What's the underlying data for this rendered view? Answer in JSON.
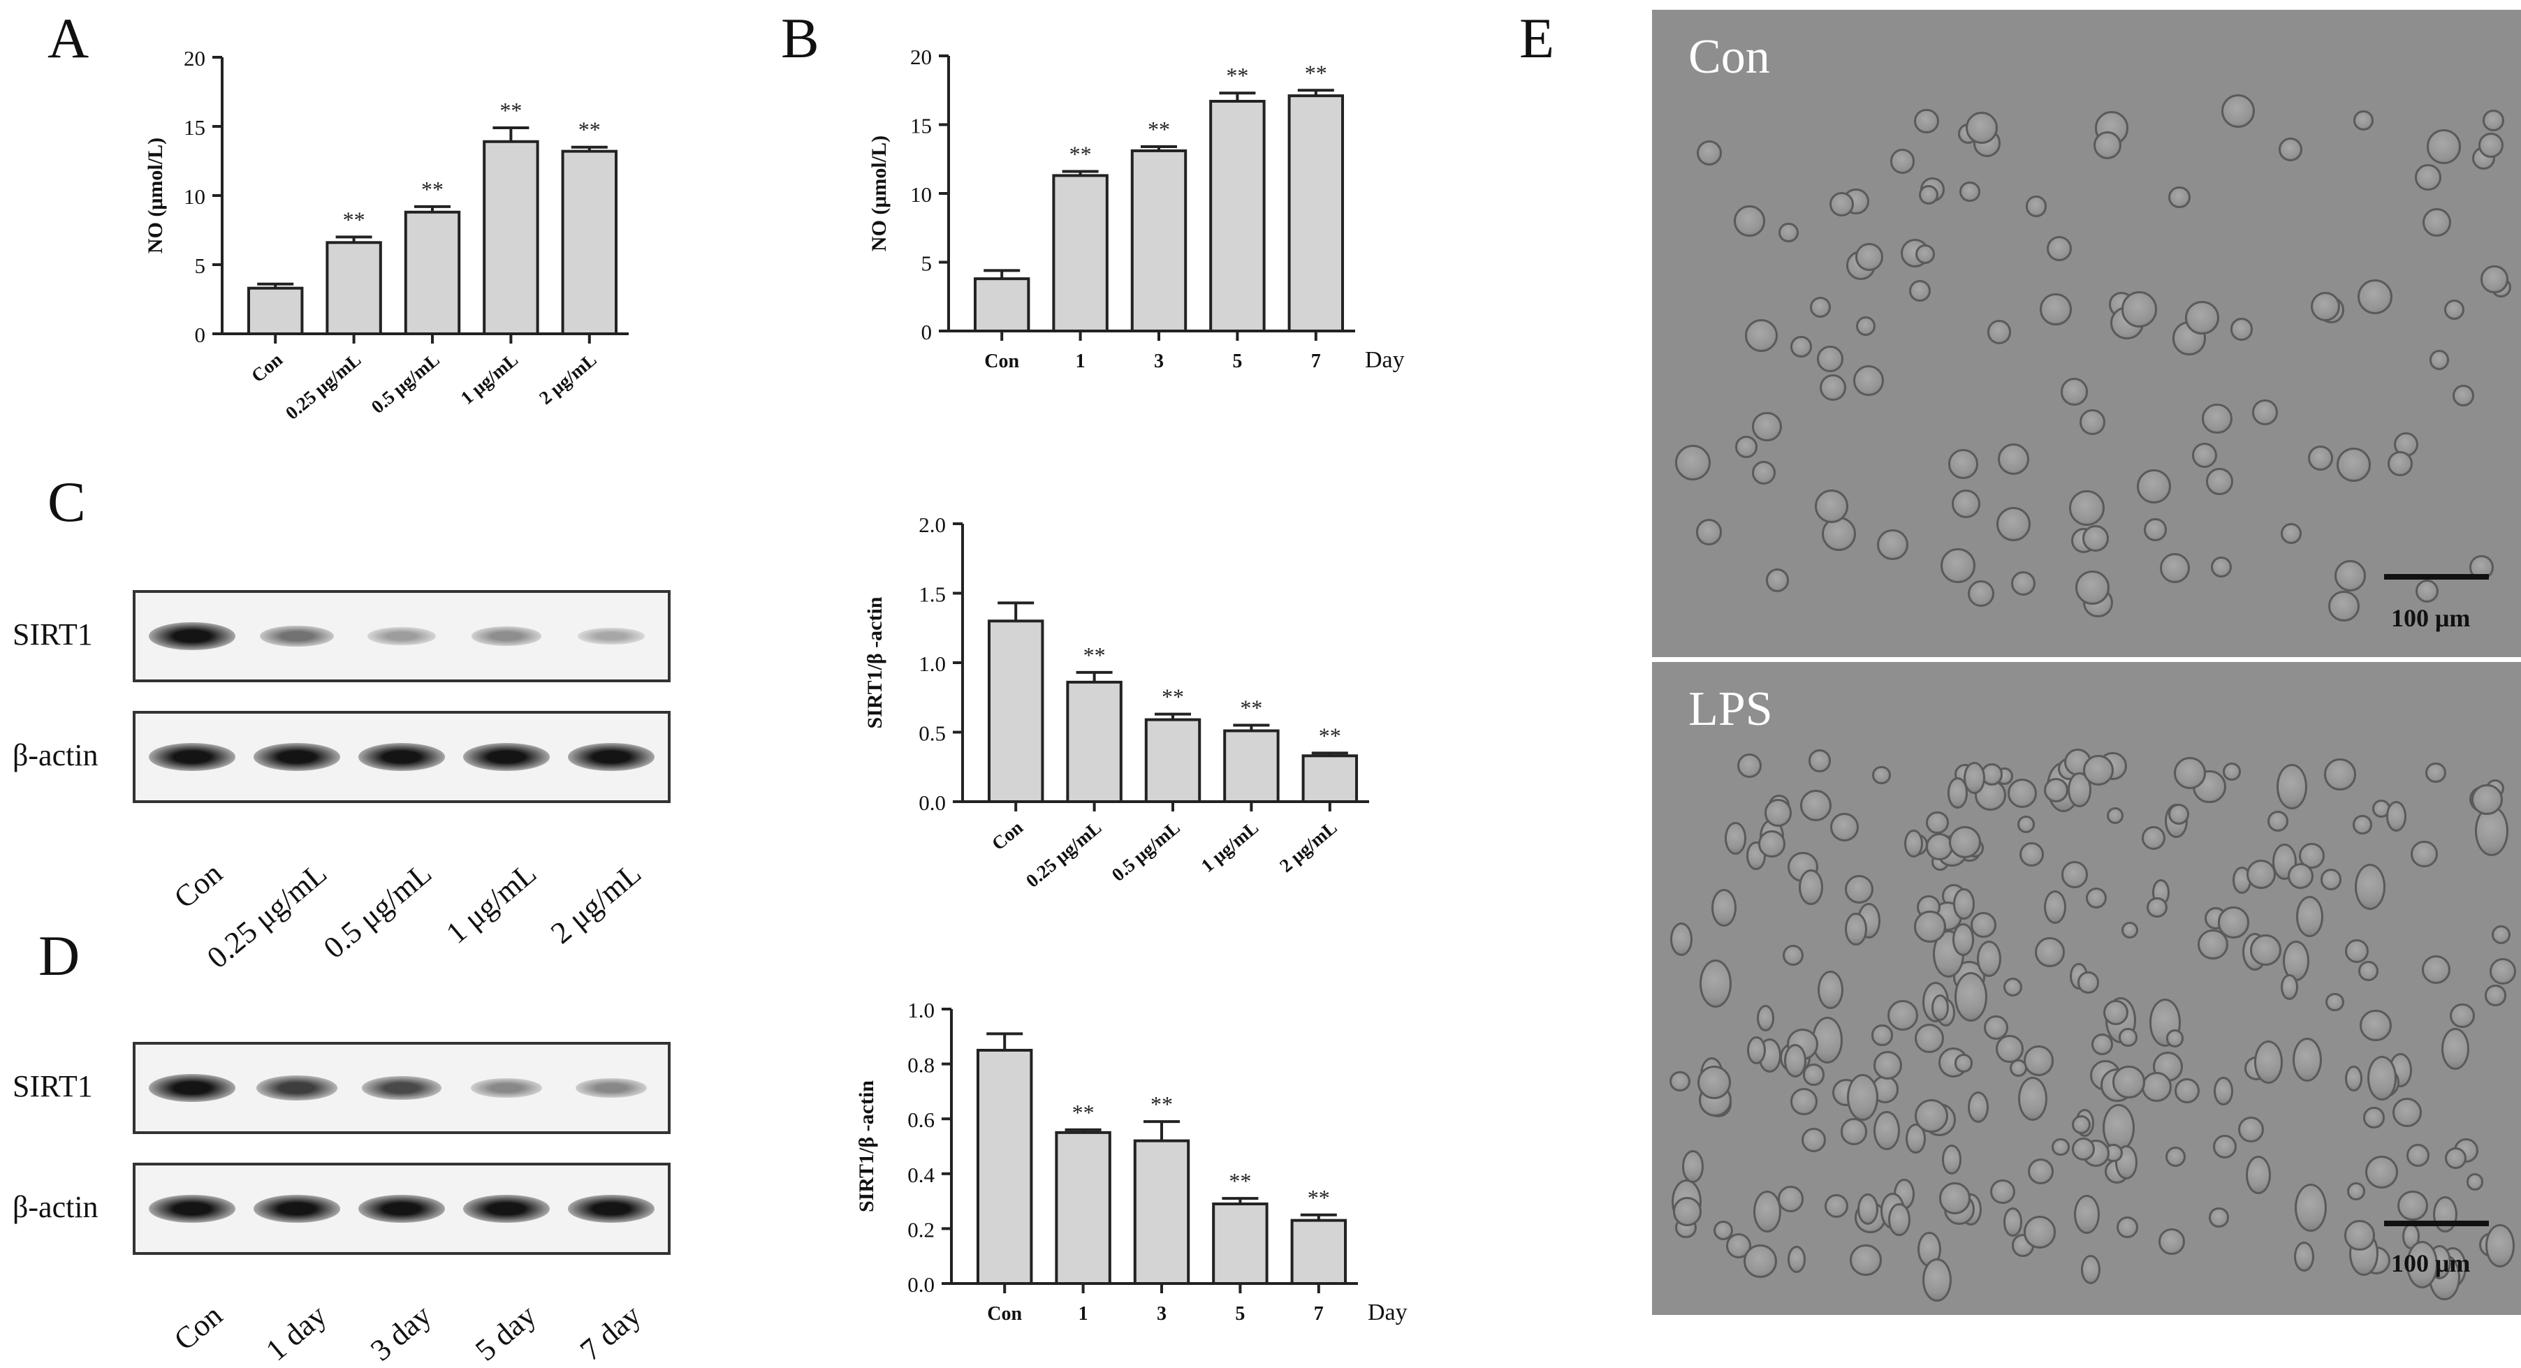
{
  "panel_letters": [
    "A",
    "B",
    "C",
    "D",
    "E"
  ],
  "chart_data": [
    {
      "id": "A",
      "type": "bar",
      "ylabel": "NO (μmol/L)",
      "categories": [
        "Con",
        "0.25 μg/mL",
        "0.5 μg/mL",
        "1 μg/mL",
        "2 μg/mL"
      ],
      "values": [
        3.3,
        6.6,
        8.8,
        13.9,
        13.2
      ],
      "errors": [
        0.3,
        0.4,
        0.4,
        1.0,
        0.3
      ],
      "significance": [
        "",
        "**",
        "**",
        "**",
        "**"
      ],
      "ylim": [
        0,
        20
      ],
      "yticks": [
        "0",
        "5",
        "10",
        "15",
        "20"
      ],
      "x_unit_label": ""
    },
    {
      "id": "B",
      "type": "bar",
      "ylabel": "NO (μmol/L)",
      "categories": [
        "Con",
        "1",
        "3",
        "5",
        "7"
      ],
      "values": [
        3.8,
        11.3,
        13.1,
        16.7,
        17.1
      ],
      "errors": [
        0.6,
        0.3,
        0.3,
        0.6,
        0.4
      ],
      "significance": [
        "",
        "**",
        "**",
        "**",
        "**"
      ],
      "ylim": [
        0,
        20
      ],
      "yticks": [
        "0",
        "5",
        "10",
        "15",
        "20"
      ],
      "x_unit_label": "Day"
    },
    {
      "id": "C",
      "type": "bar",
      "ylabel": "SIRT1/β -actin",
      "categories": [
        "Con",
        "0.25 μg/mL",
        "0.5 μg/mL",
        "1 μg/mL",
        "2 μg/mL"
      ],
      "values": [
        1.3,
        0.86,
        0.59,
        0.51,
        0.33
      ],
      "errors": [
        0.13,
        0.07,
        0.04,
        0.04,
        0.02
      ],
      "significance": [
        "",
        "**",
        "**",
        "**",
        "**"
      ],
      "ylim": [
        0,
        2.0
      ],
      "yticks": [
        "0.0",
        "0.5",
        "1.0",
        "1.5",
        "2.0"
      ],
      "x_unit_label": ""
    },
    {
      "id": "D",
      "type": "bar",
      "ylabel": "SIRT1/β -actin",
      "categories": [
        "Con",
        "1",
        "3",
        "5",
        "7"
      ],
      "values": [
        0.85,
        0.55,
        0.52,
        0.29,
        0.23
      ],
      "errors": [
        0.06,
        0.01,
        0.07,
        0.02,
        0.02
      ],
      "significance": [
        "",
        "**",
        "**",
        "**",
        "**"
      ],
      "ylim": [
        0,
        1.0
      ],
      "yticks": [
        "0.0",
        "0.2",
        "0.4",
        "0.6",
        "0.8",
        "1.0"
      ],
      "x_unit_label": "Day"
    }
  ],
  "blots": [
    {
      "id": "C",
      "rows": [
        {
          "label": "SIRT1",
          "intensities": [
            1.0,
            0.55,
            0.35,
            0.42,
            0.3
          ]
        },
        {
          "label": "β-actin",
          "intensities": [
            1.0,
            1.0,
            1.0,
            1.0,
            1.0
          ]
        }
      ],
      "lane_labels": [
        "Con",
        "0.25 μg/mL",
        "0.5 μg/mL",
        "1 μg/mL",
        "2 μg/mL"
      ]
    },
    {
      "id": "D",
      "rows": [
        {
          "label": "SIRT1",
          "intensities": [
            1.0,
            0.8,
            0.75,
            0.45,
            0.45
          ]
        },
        {
          "label": "β-actin",
          "intensities": [
            1.0,
            1.0,
            1.0,
            1.0,
            1.0
          ]
        }
      ],
      "lane_labels": [
        "Con",
        "1 day",
        "3 day",
        "5 day",
        "7 day"
      ]
    }
  ],
  "micrographs": [
    {
      "label": "Con",
      "scale_text": "100 μm",
      "background": "#8e8e8e"
    },
    {
      "label": "LPS",
      "scale_text": "100 μm",
      "background": "#8f8f8f"
    }
  ]
}
